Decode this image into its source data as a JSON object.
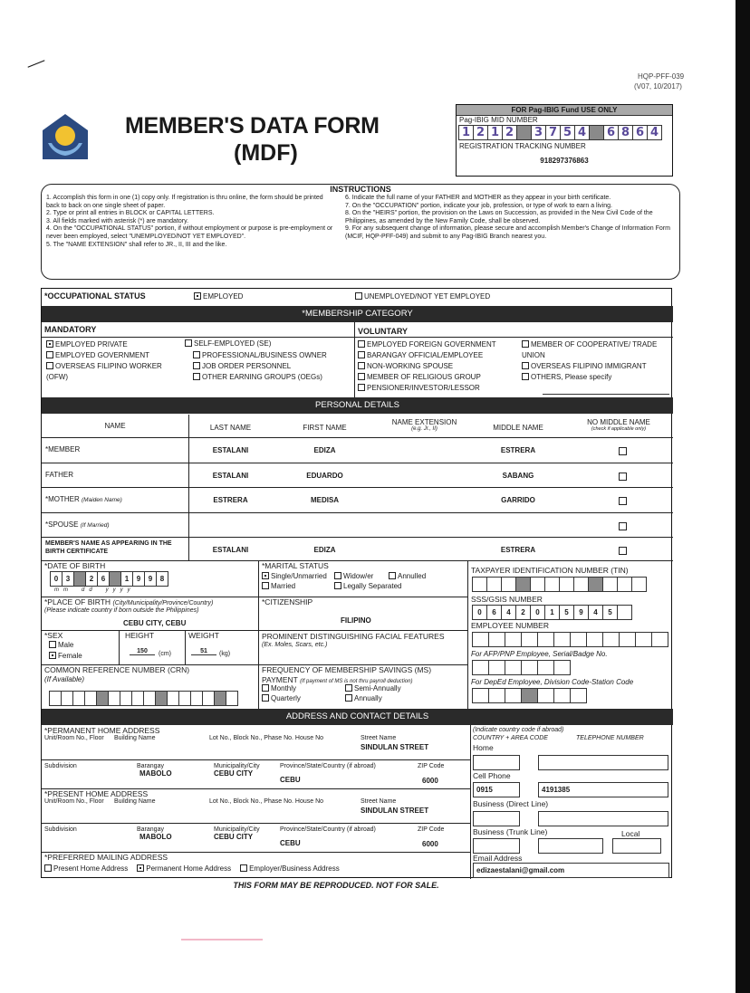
{
  "header": {
    "form_code": "HQP-PFF-039",
    "version": "(V07, 10/2017)",
    "title_line1": "MEMBER'S DATA FORM",
    "title_line2": "(MDF)",
    "logo_text": "Pag-IBIG"
  },
  "office": {
    "heading": "FOR Pag-IBIG Fund USE ONLY",
    "mid_label": "Pag-IBIG MID NUMBER",
    "mid_digits": [
      "1",
      "2",
      "1",
      "2",
      null,
      "3",
      "7",
      "5",
      "4",
      null,
      "6",
      "8",
      "6",
      "4"
    ],
    "rtn_label": "REGISTRATION TRACKING NUMBER",
    "rtn_value": "918297376863"
  },
  "instructions": {
    "title": "INSTRUCTIONS",
    "left": [
      "1. Accomplish this form in one (1) copy only. If registration is thru online, the form should be printed back to back on one single sheet of paper.",
      "2. Type or print all entries in BLOCK or CAPITAL LETTERS.",
      "3. All fields marked with asterisk (*) are mandatory.",
      "4. On the \"OCCUPATIONAL STATUS\" portion, if without employment or purpose is pre-employment or never been employed, select \"UNEMPLOYED/NOT YET EMPLOYED\".",
      "5. The \"NAME EXTENSION\" shall refer to JR., II, III and the like."
    ],
    "right": [
      "6. Indicate the full name of your FATHER and MOTHER as they appear in your birth certificate.",
      "7. On the \"OCCUPATION\" portion, indicate your job, profession, or type of work to earn a living.",
      "8. On the \"HEIRS\" portion, the provision on the Laws on Succession, as provided in the New Civil Code of the Philippines, as amended by the New Family Code, shall be observed.",
      "9. For any subsequent change of information, please secure and accomplish Member's Change of Information Form (MCIF, HQP-PFF-049) and submit to any Pag-IBIG Branch nearest you."
    ]
  },
  "occupational": {
    "label": "*OCCUPATIONAL STATUS",
    "options": [
      {
        "label": "EMPLOYED",
        "checked": true
      },
      {
        "label": "UNEMPLOYED/NOT YET EMPLOYED",
        "checked": false
      }
    ]
  },
  "membership": {
    "title": "*MEMBERSHIP CATEGORY",
    "mandatory_title": "MANDATORY",
    "voluntary_title": "VOLUNTARY",
    "mandatory_col1": [
      {
        "label": "EMPLOYED PRIVATE",
        "checked": true
      },
      {
        "label": "EMPLOYED GOVERNMENT",
        "checked": false
      },
      {
        "label": "OVERSEAS FILIPINO WORKER (OFW)",
        "checked": false
      }
    ],
    "self_employed": {
      "label": "SELF-EMPLOYED (SE)",
      "checked": false
    },
    "mandatory_col2": [
      {
        "label": "PROFESSIONAL/BUSINESS OWNER",
        "checked": false
      },
      {
        "label": "JOB ORDER PERSONNEL",
        "checked": false
      },
      {
        "label": "OTHER EARNING GROUPS (OEGs)",
        "checked": false
      }
    ],
    "voluntary_col1": [
      {
        "label": "EMPLOYED FOREIGN GOVERNMENT",
        "checked": false
      },
      {
        "label": "BARANGAY OFFICIAL/EMPLOYEE",
        "checked": false
      },
      {
        "label": "NON-WORKING SPOUSE",
        "checked": false
      },
      {
        "label": "MEMBER OF RELIGIOUS GROUP",
        "checked": false
      },
      {
        "label": "PENSIONER/INVESTOR/LESSOR",
        "checked": false
      }
    ],
    "voluntary_col2": [
      {
        "label": "MEMBER OF COOPERATIVE/ TRADE UNION",
        "checked": false
      },
      {
        "label": "OVERSEAS FILIPINO IMMIGRANT",
        "checked": false
      },
      {
        "label": "OTHERS, Please specify",
        "checked": false
      }
    ]
  },
  "personal": {
    "title": "PERSONAL DETAILS",
    "headers": {
      "name": "NAME",
      "last": "LAST NAME",
      "first": "FIRST NAME",
      "ext": "NAME EXTENSION",
      "ext_hint": "(e.g. Jr., II)",
      "middle": "MIDDLE NAME",
      "no_middle": "NO MIDDLE NAME",
      "no_middle_hint": "(check if applicable only)"
    },
    "rows": [
      {
        "label": "*MEMBER",
        "hint": "",
        "last": "ESTALANI",
        "first": "EDIZA",
        "ext": "",
        "middle": "ESTRERA",
        "no_middle": false
      },
      {
        "label": "FATHER",
        "hint": "",
        "last": "ESTALANI",
        "first": "EDUARDO",
        "ext": "",
        "middle": "SABANG",
        "no_middle": false
      },
      {
        "label": "*MOTHER",
        "hint": "(Maiden Name)",
        "last": "ESTRERA",
        "first": "MEDISA",
        "ext": "",
        "middle": "GARRIDO",
        "no_middle": false
      },
      {
        "label": "*SPOUSE",
        "hint": "(If Married)",
        "last": "",
        "first": "",
        "ext": "",
        "middle": "",
        "no_middle": false
      },
      {
        "label": "MEMBER'S NAME AS APPEARING IN THE BIRTH CERTIFICATE",
        "hint": "",
        "last": "ESTALANI",
        "first": "EDIZA",
        "ext": "",
        "middle": "ESTRERA",
        "no_middle": false
      }
    ]
  },
  "dob": {
    "label": "*DATE OF BIRTH",
    "cells": [
      "0",
      "3",
      null,
      "2",
      "6",
      null,
      "1",
      "9",
      "9",
      "8"
    ],
    "format": "m   m         d   d         y   y   y   y"
  },
  "marital": {
    "label": "*MARITAL STATUS",
    "options": [
      {
        "label": "Single/Unmarried",
        "checked": true
      },
      {
        "label": "Widow/er",
        "checked": false
      },
      {
        "label": "Annulled",
        "checked": false
      },
      {
        "label": "Married",
        "checked": false
      },
      {
        "label": "Legally Separated",
        "checked": false
      }
    ]
  },
  "birthplace": {
    "label": "*PLACE OF BIRTH",
    "label_hint": "(City/Municipality/Province/Country)",
    "hint": "(Please indicate country if born outside the Philippines)",
    "value": "CEBU CITY, CEBU"
  },
  "citizenship": {
    "label": "*CITIZENSHIP",
    "value": "FILIPINO"
  },
  "sex": {
    "label": "*SEX",
    "options": [
      {
        "label": "Male",
        "checked": false
      },
      {
        "label": "Female",
        "checked": true
      }
    ]
  },
  "height": {
    "label": "HEIGHT",
    "value": "150",
    "unit": "(cm)"
  },
  "weight": {
    "label": "WEIGHT",
    "value": "51",
    "unit": "(kg)"
  },
  "features": {
    "label": "PROMINENT DISTINGUISHING FACIAL FEATURES",
    "hint": "(Ex. Moles, Scars, etc.)"
  },
  "crn": {
    "label": "COMMON REFERENCE NUMBER (CRN)",
    "hint": "(If Available)",
    "cells": [
      "",
      "",
      "",
      "",
      null,
      "",
      "",
      "",
      "",
      null,
      "",
      "",
      "",
      "",
      null,
      ""
    ]
  },
  "ms_payment": {
    "label": "FREQUENCY OF MEMBERSHIP SAVINGS (MS)",
    "label2": "PAYMENT",
    "hint": "(If payment of MS is not thru payroll deduction)",
    "options": [
      {
        "label": "Monthly",
        "checked": false
      },
      {
        "label": "Semi-Annually",
        "checked": false
      },
      {
        "label": "Quarterly",
        "checked": false
      },
      {
        "label": "Annually",
        "checked": false
      }
    ]
  },
  "tin": {
    "label": "TAXPAYER IDENTIFICATION NUMBER (TIN)",
    "cells": [
      "",
      "",
      "",
      null,
      "",
      "",
      "",
      "",
      null,
      "",
      "",
      ""
    ]
  },
  "sss": {
    "label": "SSS/GSIS NUMBER",
    "cells": [
      "0",
      "6",
      "4",
      "2",
      "0",
      "1",
      "5",
      "9",
      "4",
      "5",
      ""
    ]
  },
  "employee": {
    "label": "EMPLOYEE NUMBER",
    "cells": [
      "",
      "",
      "",
      "",
      "",
      "",
      "",
      "",
      "",
      "",
      "",
      ""
    ]
  },
  "afp": {
    "label": "For AFP/PNP Employee, Serial/Badge No.",
    "cells": [
      "",
      "",
      "",
      "",
      "",
      ""
    ]
  },
  "deped": {
    "label": "For DepEd Employee, Division Code-Station Code",
    "cells": [
      "",
      "",
      "",
      null,
      "",
      "",
      ""
    ]
  },
  "address": {
    "title": "ADDRESS AND CONTACT DETAILS",
    "cols": {
      "unit": "Unit/Room No., Floor",
      "building": "Building Name",
      "lot": "Lot No., Block No., Phase No. House No",
      "street": "Street Name",
      "subdivision": "Subdivision",
      "barangay": "Barangay",
      "city": "Municipality/City",
      "province": "Province/State/Country (if abroad)",
      "zip": "ZIP Code"
    },
    "permanent": {
      "label": "*PERMANENT HOME ADDRESS",
      "street": "SINDULAN STREET",
      "barangay": "MABOLO",
      "city": "CEBU CITY",
      "province": "CEBU",
      "zip": "6000"
    },
    "present": {
      "label": "*PRESENT HOME ADDRESS",
      "street": "SINDULAN STREET",
      "barangay": "MABOLO",
      "city": "CEBU CITY",
      "province": "CEBU",
      "zip": "6000"
    },
    "preferred": {
      "label": "*PREFERRED MAILING ADDRESS",
      "options": [
        {
          "label": "Present Home Address",
          "checked": false
        },
        {
          "label": "Permanent Home Address",
          "checked": true
        },
        {
          "label": "Employer/Business Address",
          "checked": false
        }
      ]
    }
  },
  "contact": {
    "hint": "(Indicate country code if abroad)",
    "code_label": "COUNTRY + AREA CODE",
    "tel_label": "TELEPHONE NUMBER",
    "home_label": "Home",
    "cell_label": "Cell Phone",
    "cell_code": "0915",
    "cell_number": "4191385",
    "direct_label": "Business (Direct Line)",
    "trunk_label": "Business (Trunk Line)",
    "local_label": "Local",
    "email_label": "Email Address",
    "email": "edizaestalani@gmail.com"
  },
  "footer": "THIS FORM MAY BE REPRODUCED. NOT FOR SALE."
}
